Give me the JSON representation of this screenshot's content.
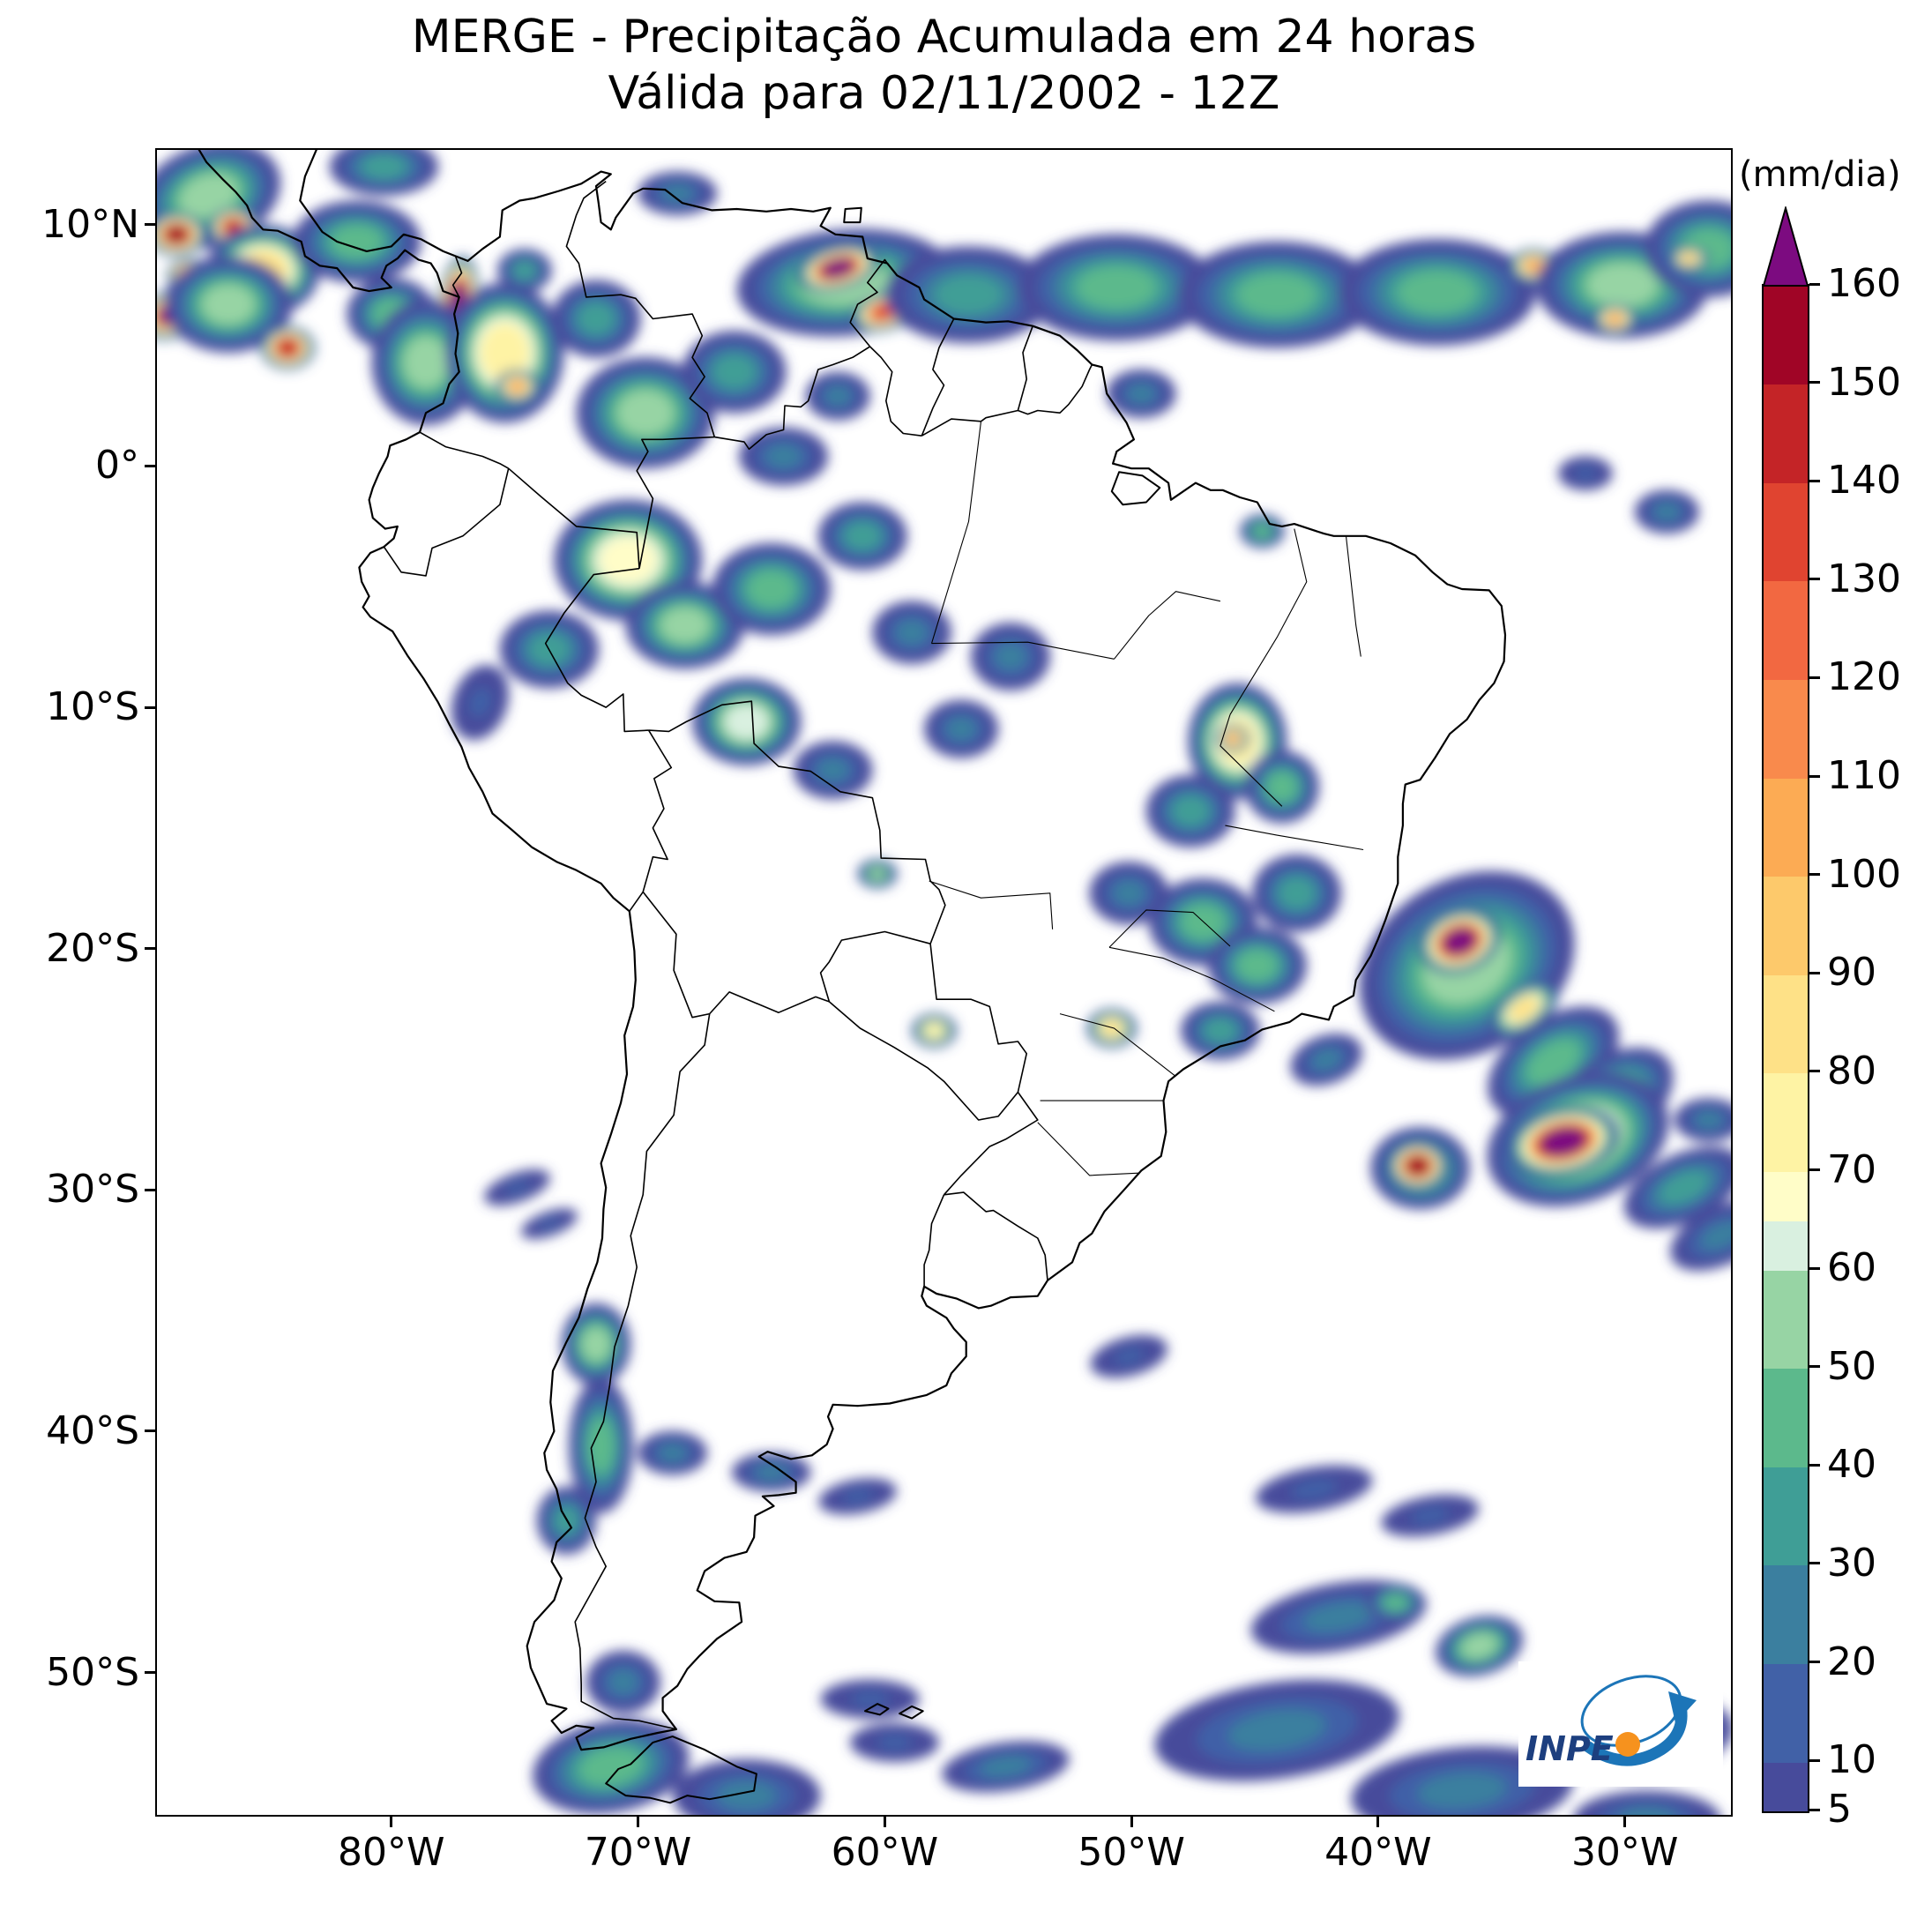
{
  "header": {
    "title": "MERGE - Precipitação Acumulada em 24 horas",
    "subtitle": "Válida para 02/11/2002 - 12Z"
  },
  "colorbar": {
    "unit_label": "(mm/dia)"
  },
  "logo": {
    "text": "INPE"
  },
  "chart_data": {
    "type": "heatmap",
    "title": "MERGE - Precipitação Acumulada em 24 horas",
    "subtitle": "Válida para 02/11/2002 - 12Z",
    "units": "mm/dia",
    "projection": "equirectangular",
    "region": "South America",
    "domain": {
      "lon": [
        -89.5,
        -25.7
      ],
      "lat": [
        -55.9,
        13.1
      ]
    },
    "x_ticks": [
      {
        "value": -80,
        "label": "80°W"
      },
      {
        "value": -70,
        "label": "70°W"
      },
      {
        "value": -60,
        "label": "60°W"
      },
      {
        "value": -50,
        "label": "50°W"
      },
      {
        "value": -40,
        "label": "40°W"
      },
      {
        "value": -30,
        "label": "30°W"
      }
    ],
    "y_ticks": [
      {
        "value": 10,
        "label": "10°N"
      },
      {
        "value": 0,
        "label": "0°"
      },
      {
        "value": -10,
        "label": "10°S"
      },
      {
        "value": -20,
        "label": "20°S"
      },
      {
        "value": -30,
        "label": "30°S"
      },
      {
        "value": -40,
        "label": "40°S"
      },
      {
        "value": -50,
        "label": "50°S"
      }
    ],
    "colorbar_ticks": [
      5,
      10,
      20,
      30,
      40,
      50,
      60,
      70,
      80,
      90,
      100,
      110,
      120,
      130,
      140,
      150,
      160
    ],
    "colormap": {
      "boundaries": [
        5,
        10,
        20,
        30,
        40,
        50,
        60,
        65,
        70,
        80,
        90,
        100,
        110,
        120,
        130,
        140,
        150,
        160
      ],
      "colors": [
        "#474b9b",
        "#4161a7",
        "#3b7f9f",
        "#3f9e96",
        "#5cb98c",
        "#97d4a4",
        "#d9f0e0",
        "#fffdc8",
        "#fef3a4",
        "#fee187",
        "#fdc96b",
        "#fcab54",
        "#f98a4c",
        "#f26841",
        "#e04430",
        "#c42427",
        "#a00526"
      ],
      "over": "#7c0b80"
    },
    "features": [
      {
        "name": "central-america-offshore",
        "lon": -87.4,
        "lat": 11.2,
        "rx": 3.0,
        "ry": 2.1,
        "rot": -20,
        "peak": 55
      },
      {
        "name": "left-edge-cell-north",
        "lon": -88.7,
        "lat": 9.6,
        "rx": 1.2,
        "ry": 0.9,
        "rot": 0,
        "peak": 155
      },
      {
        "name": "left-edge-cell-south",
        "lon": -88.9,
        "lat": 6.3,
        "rx": 1.4,
        "ry": 1.0,
        "rot": -20,
        "peak": 165
      },
      {
        "name": "nicaragua-offshore-cell",
        "lon": -86.4,
        "lat": 9.9,
        "rx": 1.0,
        "ry": 0.8,
        "rot": 0,
        "peak": 145
      },
      {
        "name": "left-corner-cell",
        "lon": -88.2,
        "lat": 7.9,
        "rx": 0.9,
        "ry": 0.7,
        "rot": 0,
        "peak": 160
      },
      {
        "name": "costa-rica-pacific",
        "lon": -85.2,
        "lat": 8.1,
        "rx": 2.3,
        "ry": 1.9,
        "rot": 0,
        "peak": 85
      },
      {
        "name": "pacific-itcz-green",
        "lon": -86.6,
        "lat": 6.7,
        "rx": 2.6,
        "ry": 2.0,
        "rot": 0,
        "peak": 60
      },
      {
        "name": "panama-caribbean",
        "lon": -81.4,
        "lat": 9.3,
        "rx": 2.6,
        "ry": 1.7,
        "rot": 0,
        "peak": 45
      },
      {
        "name": "caribbean-top-edge",
        "lon": -80.3,
        "lat": 12.4,
        "rx": 2.2,
        "ry": 1.2,
        "rot": 0,
        "peak": 40
      },
      {
        "name": "panama-offshore-cell",
        "lon": -84.2,
        "lat": 4.9,
        "rx": 1.1,
        "ry": 0.9,
        "rot": 0,
        "peak": 150
      },
      {
        "name": "panama-gulf",
        "lon": -80.0,
        "lat": 6.3,
        "rx": 1.8,
        "ry": 1.5,
        "rot": 0,
        "peak": 50
      },
      {
        "name": "colombia-pacific-streak",
        "lon": -77.3,
        "lat": 6.9,
        "rx": 0.8,
        "ry": 1.8,
        "rot": 8,
        "peak": 168
      },
      {
        "name": "colombia-pacific-blue",
        "lon": -78.6,
        "lat": 4.3,
        "rx": 2.2,
        "ry": 2.6,
        "rot": 0,
        "peak": 55
      },
      {
        "name": "colombia-andes",
        "lon": -75.4,
        "lat": 4.7,
        "rx": 2.4,
        "ry": 2.9,
        "rot": 0,
        "peak": 75
      },
      {
        "name": "colombia-magdalena-cell",
        "lon": -74.9,
        "lat": 3.3,
        "rx": 0.9,
        "ry": 0.7,
        "rot": 0,
        "peak": 105
      },
      {
        "name": "colombia-north",
        "lon": -74.6,
        "lat": 8.1,
        "rx": 1.1,
        "ry": 0.9,
        "rot": 0,
        "peak": 35
      },
      {
        "name": "venezuela-west",
        "lon": -71.7,
        "lat": 6.1,
        "rx": 1.8,
        "ry": 1.6,
        "rot": 0,
        "peak": 40
      },
      {
        "name": "venezuela-coast",
        "lon": -68.4,
        "lat": 11.3,
        "rx": 1.6,
        "ry": 0.9,
        "rot": 0,
        "peak": 30
      },
      {
        "name": "orinoco-amazon",
        "lon": -69.7,
        "lat": 2.2,
        "rx": 2.8,
        "ry": 2.3,
        "rot": 0,
        "peak": 55
      },
      {
        "name": "venezuela-guayana",
        "lon": -66.1,
        "lat": 3.9,
        "rx": 2.1,
        "ry": 1.7,
        "rot": 0,
        "peak": 40
      },
      {
        "name": "roraima",
        "lon": -61.9,
        "lat": 2.9,
        "rx": 1.3,
        "ry": 1.0,
        "rot": 0,
        "peak": 28
      },
      {
        "name": "itcz-west",
        "lon": -61.6,
        "lat": 7.6,
        "rx": 4.4,
        "ry": 2.2,
        "rot": -5,
        "peak": 60
      },
      {
        "name": "itcz-west-core",
        "lon": -61.9,
        "lat": 8.2,
        "rx": 1.7,
        "ry": 0.9,
        "rot": -15,
        "peak": 168
      },
      {
        "name": "itcz-west-core2",
        "lon": -60.0,
        "lat": 6.4,
        "rx": 1.4,
        "ry": 0.8,
        "rot": -15,
        "peak": 135
      },
      {
        "name": "guyana-offshore",
        "lon": -56.6,
        "lat": 7.1,
        "rx": 3.4,
        "ry": 2.0,
        "rot": 0,
        "peak": 35
      },
      {
        "name": "itcz-mid-1",
        "lon": -50.6,
        "lat": 7.4,
        "rx": 4.0,
        "ry": 2.2,
        "rot": 0,
        "peak": 50
      },
      {
        "name": "itcz-mid-core",
        "lon": -45.2,
        "lat": 6.4,
        "rx": 0.9,
        "ry": 0.6,
        "rot": 0,
        "peak": 95
      },
      {
        "name": "itcz-mid-2",
        "lon": -44.1,
        "lat": 7.1,
        "rx": 4.0,
        "ry": 2.2,
        "rot": 0,
        "peak": 45
      },
      {
        "name": "itcz-east-1",
        "lon": -37.6,
        "lat": 7.2,
        "rx": 4.0,
        "ry": 2.2,
        "rot": 0,
        "peak": 50
      },
      {
        "name": "itcz-east-core1",
        "lon": -33.7,
        "lat": 8.3,
        "rx": 1.0,
        "ry": 0.7,
        "rot": 0,
        "peak": 105
      },
      {
        "name": "itcz-east-2",
        "lon": -30.1,
        "lat": 7.5,
        "rx": 3.5,
        "ry": 2.2,
        "rot": 0,
        "peak": 55
      },
      {
        "name": "itcz-east-core2",
        "lon": -30.4,
        "lat": 6.1,
        "rx": 0.9,
        "ry": 0.6,
        "rot": 0,
        "peak": 110
      },
      {
        "name": "itcz-right-edge",
        "lon": -26.6,
        "lat": 9.0,
        "rx": 2.6,
        "ry": 2.0,
        "rot": 0,
        "peak": 45
      },
      {
        "name": "itcz-right-core",
        "lon": -27.4,
        "lat": 8.6,
        "rx": 0.8,
        "ry": 0.5,
        "rot": 0,
        "peak": 95
      },
      {
        "name": "amapa-offshore",
        "lon": -49.6,
        "lat": 3.0,
        "rx": 1.4,
        "ry": 1.0,
        "rot": 0,
        "peak": 28
      },
      {
        "name": "amazon-nw",
        "lon": -70.4,
        "lat": -3.9,
        "rx": 3.0,
        "ry": 2.5,
        "rot": 0,
        "peak": 72
      },
      {
        "name": "amazon-nw-south",
        "lon": -68.1,
        "lat": -6.6,
        "rx": 2.4,
        "ry": 1.8,
        "rot": 0,
        "peak": 55
      },
      {
        "name": "peru-amazon",
        "lon": -73.6,
        "lat": -7.6,
        "rx": 2.0,
        "ry": 1.6,
        "rot": 0,
        "peak": 40
      },
      {
        "name": "amazon-center",
        "lon": -64.6,
        "lat": -5.1,
        "rx": 2.4,
        "ry": 1.9,
        "rot": 0,
        "peak": 45
      },
      {
        "name": "amazon-negro",
        "lon": -64.1,
        "lat": 0.4,
        "rx": 1.8,
        "ry": 1.2,
        "rot": 0,
        "peak": 30
      },
      {
        "name": "amazon-manaus",
        "lon": -60.9,
        "lat": -2.9,
        "rx": 1.8,
        "ry": 1.4,
        "rot": 0,
        "peak": 35
      },
      {
        "name": "amazon-east",
        "lon": -58.9,
        "lat": -6.9,
        "rx": 1.6,
        "ry": 1.3,
        "rot": 0,
        "peak": 30
      },
      {
        "name": "rondonia",
        "lon": -65.6,
        "lat": -10.6,
        "rx": 2.2,
        "ry": 1.8,
        "rot": 0,
        "peak": 65
      },
      {
        "name": "rondonia-south",
        "lon": -62.1,
        "lat": -12.6,
        "rx": 1.6,
        "ry": 1.2,
        "rot": 0,
        "peak": 30
      },
      {
        "name": "mato-grosso-north",
        "lon": -56.9,
        "lat": -10.9,
        "rx": 1.5,
        "ry": 1.2,
        "rot": 0,
        "peak": 25
      },
      {
        "name": "para-south",
        "lon": -54.9,
        "lat": -7.9,
        "rx": 1.6,
        "ry": 1.4,
        "rot": 0,
        "peak": 30
      },
      {
        "name": "peru-coast",
        "lon": -76.4,
        "lat": -9.8,
        "rx": 1.1,
        "ry": 1.6,
        "rot": 20,
        "peak": 22
      },
      {
        "name": "maranhao-cell",
        "lon": -44.7,
        "lat": -2.7,
        "rx": 0.9,
        "ry": 0.7,
        "rot": 0,
        "peak": 45
      },
      {
        "name": "ne-brazil-offshore",
        "lon": -28.3,
        "lat": -1.9,
        "rx": 1.3,
        "ry": 0.9,
        "rot": 0,
        "peak": 25
      },
      {
        "name": "equator-atlantic",
        "lon": -31.6,
        "lat": -0.3,
        "rx": 1.1,
        "ry": 0.7,
        "rot": 0,
        "peak": 22
      },
      {
        "name": "tocantins-bahia",
        "lon": -45.7,
        "lat": -11.4,
        "rx": 2.0,
        "ry": 2.4,
        "rot": 0,
        "peak": 75
      },
      {
        "name": "tocantins-core",
        "lon": -45.9,
        "lat": -11.3,
        "rx": 0.7,
        "ry": 0.6,
        "rot": 0,
        "peak": 105
      },
      {
        "name": "goias-north",
        "lon": -47.6,
        "lat": -14.3,
        "rx": 1.8,
        "ry": 1.5,
        "rot": 0,
        "peak": 40
      },
      {
        "name": "bahia-west",
        "lon": -43.9,
        "lat": -13.3,
        "rx": 1.5,
        "ry": 1.5,
        "rot": 0,
        "peak": 45
      },
      {
        "name": "minas-north",
        "lon": -47.1,
        "lat": -18.9,
        "rx": 2.2,
        "ry": 1.8,
        "rot": 0,
        "peak": 45
      },
      {
        "name": "minas-south",
        "lon": -44.9,
        "lat": -20.7,
        "rx": 2.0,
        "ry": 1.6,
        "rot": 0,
        "peak": 50
      },
      {
        "name": "minas-east",
        "lon": -43.3,
        "lat": -17.7,
        "rx": 1.8,
        "ry": 1.6,
        "rot": 0,
        "peak": 40
      },
      {
        "name": "goias-south",
        "lon": -50.1,
        "lat": -17.7,
        "rx": 1.6,
        "ry": 1.3,
        "rot": 0,
        "peak": 30
      },
      {
        "name": "sao-paulo-west-cell",
        "lon": -50.8,
        "lat": -23.3,
        "rx": 1.0,
        "ry": 0.8,
        "rot": 0,
        "peak": 85
      },
      {
        "name": "sao-paulo-east",
        "lon": -46.4,
        "lat": -23.4,
        "rx": 1.6,
        "ry": 1.2,
        "rot": 0,
        "peak": 40
      },
      {
        "name": "rio-offshore",
        "lon": -42.1,
        "lat": -24.6,
        "rx": 1.5,
        "ry": 1.0,
        "rot": -20,
        "peak": 30
      },
      {
        "name": "paraguay-cell",
        "lon": -58.0,
        "lat": -23.4,
        "rx": 0.9,
        "ry": 0.7,
        "rot": 0,
        "peak": 75
      },
      {
        "name": "bolivia-brazil-cell",
        "lon": -60.3,
        "lat": -16.9,
        "rx": 0.8,
        "ry": 0.6,
        "rot": 0,
        "peak": 55
      },
      {
        "name": "espirito-santo-system",
        "lon": -36.4,
        "lat": -20.7,
        "rx": 4.6,
        "ry": 3.6,
        "rot": -30,
        "peak": 60
      },
      {
        "name": "espirito-santo-core",
        "lon": -36.7,
        "lat": -19.7,
        "rx": 1.7,
        "ry": 1.3,
        "rot": -20,
        "peak": 170
      },
      {
        "name": "espirito-santo-yellow-arc",
        "lon": -34.1,
        "lat": -22.5,
        "rx": 1.6,
        "ry": 0.9,
        "rot": -35,
        "peak": 90
      },
      {
        "name": "se-atlantic-band-1",
        "lon": -32.9,
        "lat": -24.7,
        "rx": 3.0,
        "ry": 1.8,
        "rot": -35,
        "peak": 45
      },
      {
        "name": "se-atlantic-band-2",
        "lon": -30.7,
        "lat": -26.4,
        "rx": 3.0,
        "ry": 1.8,
        "rot": -35,
        "peak": 55
      },
      {
        "name": "atlantic-purple-halo",
        "lon": -31.9,
        "lat": -27.9,
        "rx": 3.8,
        "ry": 2.6,
        "rot": -20,
        "peak": 70
      },
      {
        "name": "atlantic-purple-core",
        "lon": -32.5,
        "lat": -28.0,
        "rx": 2.3,
        "ry": 1.4,
        "rot": -12,
        "peak": 172
      },
      {
        "name": "atlantic-small-cell-halo",
        "lon": -38.3,
        "lat": -29.1,
        "rx": 2.0,
        "ry": 1.7,
        "rot": 0,
        "peak": 55
      },
      {
        "name": "atlantic-small-cell",
        "lon": -38.4,
        "lat": -29.0,
        "rx": 1.2,
        "ry": 1.0,
        "rot": 0,
        "peak": 162
      },
      {
        "name": "atlantic-tail-1",
        "lon": -27.6,
        "lat": -29.9,
        "rx": 2.6,
        "ry": 1.4,
        "rot": -25,
        "peak": 35
      },
      {
        "name": "atlantic-tail-2",
        "lon": -26.1,
        "lat": -31.9,
        "rx": 2.2,
        "ry": 1.2,
        "rot": -25,
        "peak": 30
      },
      {
        "name": "atlantic-east",
        "lon": -26.6,
        "lat": -27.1,
        "rx": 1.4,
        "ry": 0.9,
        "rot": 0,
        "peak": 25
      },
      {
        "name": "chile-central",
        "lon": -71.7,
        "lat": -36.4,
        "rx": 1.4,
        "ry": 1.7,
        "rot": 0,
        "peak": 55
      },
      {
        "name": "chile-south",
        "lon": -71.5,
        "lat": -40.6,
        "rx": 1.3,
        "ry": 2.8,
        "rot": 0,
        "peak": 45
      },
      {
        "name": "chile-chiloe",
        "lon": -72.9,
        "lat": -43.7,
        "rx": 1.2,
        "ry": 1.4,
        "rot": 0,
        "peak": 35
      },
      {
        "name": "argentina-neuquen",
        "lon": -68.6,
        "lat": -40.9,
        "rx": 1.4,
        "ry": 0.9,
        "rot": 0,
        "peak": 25
      },
      {
        "name": "argentina-pampa-1",
        "lon": -64.6,
        "lat": -41.7,
        "rx": 1.6,
        "ry": 0.8,
        "rot": 0,
        "peak": 25
      },
      {
        "name": "argentina-pampa-2",
        "lon": -61.1,
        "lat": -42.7,
        "rx": 1.6,
        "ry": 0.7,
        "rot": -10,
        "peak": 20
      },
      {
        "name": "chile-coast-30s",
        "lon": -74.9,
        "lat": -29.9,
        "rx": 1.4,
        "ry": 0.6,
        "rot": -20,
        "peak": 20
      },
      {
        "name": "chile-coast-32s",
        "lon": -73.6,
        "lat": -31.4,
        "rx": 1.2,
        "ry": 0.5,
        "rot": -20,
        "peak": 18
      },
      {
        "name": "tierra-del-fuego",
        "lon": -71.1,
        "lat": -53.9,
        "rx": 3.2,
        "ry": 1.9,
        "rot": -10,
        "peak": 50
      },
      {
        "name": "tdf-east",
        "lon": -65.6,
        "lat": -55.1,
        "rx": 3.0,
        "ry": 1.5,
        "rot": 0,
        "peak": 30
      },
      {
        "name": "patagonia-50s",
        "lon": -70.6,
        "lat": -50.4,
        "rx": 1.5,
        "ry": 1.3,
        "rot": 0,
        "peak": 25
      },
      {
        "name": "south-atlantic-52s-west",
        "lon": -55.1,
        "lat": -53.9,
        "rx": 2.6,
        "ry": 1.0,
        "rot": -8,
        "peak": 25
      },
      {
        "name": "south-atlantic-53s-west",
        "lon": -59.6,
        "lat": -52.9,
        "rx": 1.8,
        "ry": 0.8,
        "rot": 0,
        "peak": 20
      },
      {
        "name": "falklands-patch",
        "lon": -60.6,
        "lat": -51.1,
        "rx": 2.0,
        "ry": 0.8,
        "rot": 0,
        "peak": 18
      },
      {
        "name": "south-atlantic-47s",
        "lon": -41.6,
        "lat": -47.7,
        "rx": 3.6,
        "ry": 1.4,
        "rot": -10,
        "peak": 28
      },
      {
        "name": "south-atlantic-green-47s",
        "lon": -39.3,
        "lat": -47.1,
        "rx": 1.2,
        "ry": 0.8,
        "rot": 0,
        "peak": 50
      },
      {
        "name": "south-atlantic-green-49s",
        "lon": -35.9,
        "lat": -48.9,
        "rx": 1.8,
        "ry": 1.2,
        "rot": -15,
        "peak": 55
      },
      {
        "name": "south-atlantic-52s",
        "lon": -44.1,
        "lat": -52.4,
        "rx": 5.0,
        "ry": 2.0,
        "rot": -8,
        "peak": 30
      },
      {
        "name": "south-atlantic-55s",
        "lon": -36.6,
        "lat": -54.9,
        "rx": 4.5,
        "ry": 1.8,
        "rot": -5,
        "peak": 30
      },
      {
        "name": "south-atlantic-53s-east",
        "lon": -28.6,
        "lat": -52.7,
        "rx": 3.0,
        "ry": 1.6,
        "rot": -10,
        "peak": 28
      },
      {
        "name": "south-atlantic-56s-east",
        "lon": -29.1,
        "lat": -56.1,
        "rx": 3.0,
        "ry": 1.2,
        "rot": 0,
        "peak": 25
      },
      {
        "name": "mid-atlantic-42s",
        "lon": -42.6,
        "lat": -42.4,
        "rx": 2.4,
        "ry": 0.9,
        "rot": -10,
        "peak": 20
      },
      {
        "name": "mid-atlantic-43s",
        "lon": -37.9,
        "lat": -43.5,
        "rx": 2.0,
        "ry": 0.8,
        "rot": -10,
        "peak": 18
      },
      {
        "name": "uruguay-offshore",
        "lon": -50.1,
        "lat": -36.9,
        "rx": 1.6,
        "ry": 0.8,
        "rot": -15,
        "peak": 18
      }
    ]
  }
}
